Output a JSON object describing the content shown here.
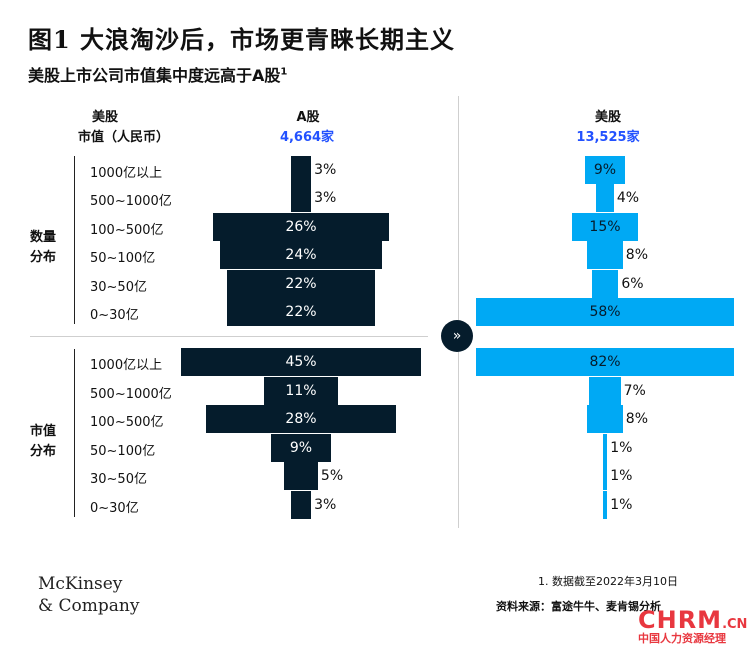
{
  "title": "图1 大浪淘沙后，市场更青睐长期主义",
  "subtitle": "美股上市公司市值集中度远高于A股",
  "subtitle_sup": "1",
  "header": {
    "left_line1": "美股",
    "left_line2": "市值（人民币）",
    "a_label": "A股",
    "a_count": "4,664家",
    "us_label": "美股",
    "us_count": "13,525家"
  },
  "groups": {
    "count_label": "数量\n分布",
    "value_label": "市值\n分布"
  },
  "chart_data": {
    "type": "bar",
    "orientation": "horizontal-centered",
    "categories": [
      "1000亿以上",
      "500~1000亿",
      "100~500亿",
      "50~100亿",
      "30~50亿",
      "0~30亿"
    ],
    "panels": [
      {
        "group": "数量分布",
        "market": "A股",
        "values": [
          3,
          3,
          26,
          24,
          22,
          22
        ],
        "labels": [
          "3%",
          "3%",
          "26%",
          "24%",
          "22%",
          "22%"
        ]
      },
      {
        "group": "数量分布",
        "market": "美股",
        "values": [
          9,
          4,
          15,
          8,
          6,
          58
        ],
        "labels": [
          "9%",
          "4%",
          "15%",
          "8%",
          "6%",
          "58%"
        ]
      },
      {
        "group": "市值分布",
        "market": "A股",
        "values": [
          45,
          11,
          28,
          9,
          5,
          3
        ],
        "labels": [
          "45%",
          "11%",
          "28%",
          "9%",
          "5%",
          "3%"
        ]
      },
      {
        "group": "市值分布",
        "market": "美股",
        "values": [
          82,
          7,
          8,
          1,
          1,
          1
        ],
        "labels": [
          "82%",
          "7%",
          "8%",
          "1%",
          "1%",
          "1%"
        ]
      }
    ],
    "colors": {
      "a_share": "#051c2c",
      "us": "#00a9f4"
    }
  },
  "arrow_icon": "double-chevron-right-icon",
  "logo": {
    "line1": "McKinsey",
    "line2": "& Company"
  },
  "footnote": "1. 数据截至2022年3月10日",
  "source": "资料来源：富途牛牛、麦肯锡分析",
  "watermark": {
    "main": "CHRM",
    "suffix": ".CN",
    "sub": "中国人力资源经理"
  }
}
